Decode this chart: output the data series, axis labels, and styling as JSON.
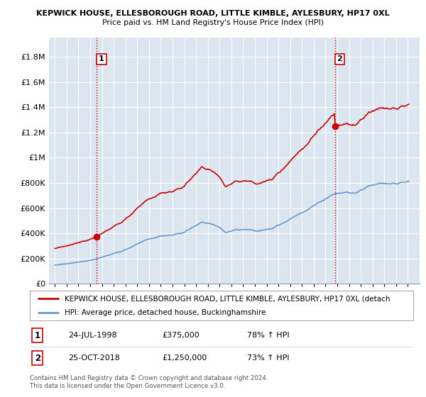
{
  "title1": "KEPWICK HOUSE, ELLESBOROUGH ROAD, LITTLE KIMBLE, AYLESBURY, HP17 0XL",
  "title2": "Price paid vs. HM Land Registry's House Price Index (HPI)",
  "legend_line1": "KEPWICK HOUSE, ELLESBOROUGH ROAD, LITTLE KIMBLE, AYLESBURY, HP17 0XL (detach",
  "legend_line2": "HPI: Average price, detached house, Buckinghamshire",
  "sale1_date": "24-JUL-1998",
  "sale1_price": "£375,000",
  "sale1_hpi": "78% ↑ HPI",
  "sale1_x": 1998.56,
  "sale1_y": 375000,
  "sale2_date": "25-OCT-2018",
  "sale2_price": "£1,250,000",
  "sale2_hpi": "73% ↑ HPI",
  "sale2_x": 2018.81,
  "sale2_y": 1250000,
  "footnote": "Contains HM Land Registry data © Crown copyright and database right 2024.\nThis data is licensed under the Open Government Licence v3.0.",
  "ylabel_ticks": [
    0,
    200000,
    400000,
    600000,
    800000,
    1000000,
    1200000,
    1400000,
    1600000,
    1800000
  ],
  "ylabel_labels": [
    "£0",
    "£200K",
    "£400K",
    "£600K",
    "£800K",
    "£1M",
    "£1.2M",
    "£1.4M",
    "£1.6M",
    "£1.8M"
  ],
  "xlim": [
    1994.5,
    2026.0
  ],
  "ylim": [
    0,
    1950000
  ],
  "hpi_color": "#6699cc",
  "price_color": "#cc0000",
  "vline_color": "#cc0000",
  "chart_bg": "#dce6f1",
  "background_color": "#ffffff",
  "grid_color": "#ffffff"
}
